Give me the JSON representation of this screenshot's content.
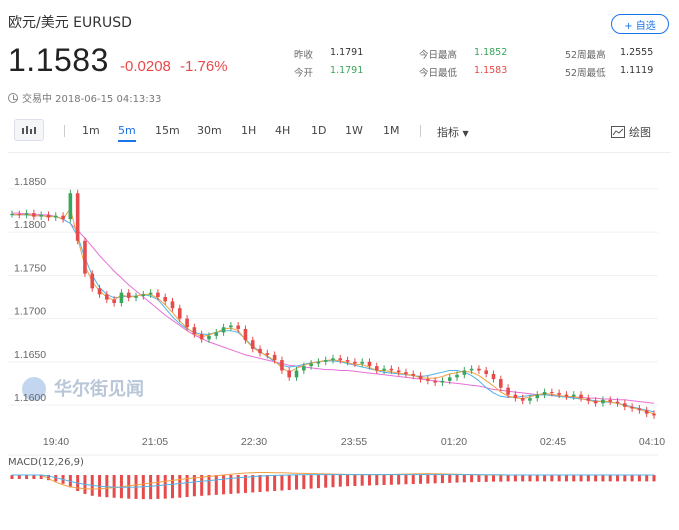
{
  "header": {
    "title": "欧元/美元  EURUSD",
    "add_label": "+ 自选",
    "price": "1.1583",
    "change": "-0.0208",
    "change_pct": "-1.76%",
    "status": "交易中 2018-06-15 04:13:33"
  },
  "stats": [
    {
      "label": "昨收",
      "value": "1.1791",
      "color": "#333333"
    },
    {
      "label": "今开",
      "value": "1.1791",
      "color": "#3aa55c"
    },
    {
      "label": "今日最高",
      "value": "1.1852",
      "color": "#3aa55c"
    },
    {
      "label": "今日最低",
      "value": "1.1583",
      "color": "#e64a4a"
    },
    {
      "label": "52周最高",
      "value": "1.2555",
      "color": "#333333"
    },
    {
      "label": "52周最低",
      "value": "1.1119",
      "color": "#333333"
    }
  ],
  "toolbar": {
    "icon": "candlestick-icon",
    "periods": [
      "1m",
      "5m",
      "15m",
      "30m",
      "1H",
      "4H",
      "1D",
      "1W",
      "1M"
    ],
    "active_period": "5m",
    "indicators_label": "指标",
    "draw_label": "绘图"
  },
  "watermark": "华尔街见闻",
  "chart_data": {
    "type": "line",
    "description_series": [
      "price",
      "ma_short",
      "ma_long"
    ],
    "x_ticks": [
      "19:40",
      "21:05",
      "22:30",
      "23:55",
      "01:20",
      "02:45",
      "04:10"
    ],
    "y_ticks": [
      "1.1850",
      "1.1800",
      "1.1750",
      "1.1700",
      "1.1650",
      "1.1600"
    ],
    "ylim": [
      1.1585,
      1.188
    ],
    "price": [
      1.1821,
      1.182,
      1.1822,
      1.1818,
      1.182,
      1.1817,
      1.1819,
      1.1815,
      1.1845,
      1.179,
      1.1752,
      1.1735,
      1.1728,
      1.1722,
      1.1718,
      1.173,
      1.1724,
      1.1726,
      1.1728,
      1.173,
      1.1725,
      1.172,
      1.1712,
      1.17,
      1.169,
      1.1682,
      1.1676,
      1.168,
      1.1684,
      1.169,
      1.1692,
      1.1688,
      1.1675,
      1.1665,
      1.166,
      1.1658,
      1.1652,
      1.164,
      1.1632,
      1.164,
      1.1645,
      1.1648,
      1.165,
      1.1652,
      1.1654,
      1.1652,
      1.165,
      1.1648,
      1.165,
      1.1645,
      1.164,
      1.1642,
      1.164,
      1.1638,
      1.1636,
      1.1634,
      1.163,
      1.1628,
      1.1626,
      1.1628,
      1.1632,
      1.1635,
      1.164,
      1.1642,
      1.164,
      1.1636,
      1.163,
      1.162,
      1.1612,
      1.1608,
      1.1605,
      1.1608,
      1.1612,
      1.1615,
      1.1614,
      1.1612,
      1.161,
      1.1612,
      1.1608,
      1.1605,
      1.1602,
      1.1606,
      1.1604,
      1.1602,
      1.1598,
      1.1596,
      1.1594,
      1.159,
      1.1588
    ],
    "ma_short": [
      1.182,
      1.182,
      1.182,
      1.1819,
      1.1819,
      1.1818,
      1.1818,
      1.1815,
      1.181,
      1.1795,
      1.177,
      1.175,
      1.1736,
      1.1728,
      1.1724,
      1.1725,
      1.1726,
      1.1726,
      1.1728,
      1.1726,
      1.1722,
      1.1712,
      1.1702,
      1.1694,
      1.1688,
      1.1684,
      1.1682,
      1.1682,
      1.1684,
      1.1686,
      1.1686,
      1.1684,
      1.1676,
      1.1668,
      1.1662,
      1.1656,
      1.165,
      1.1646,
      1.1644,
      1.1645,
      1.1647,
      1.1649,
      1.165,
      1.1651,
      1.1651,
      1.165,
      1.1648,
      1.1646,
      1.1644,
      1.1642,
      1.164,
      1.1638,
      1.1637,
      1.1636,
      1.1635,
      1.1634,
      1.1633,
      1.1634,
      1.1636,
      1.1638,
      1.164,
      1.164,
      1.1638,
      1.1634,
      1.1628,
      1.162,
      1.1614,
      1.161,
      1.1609,
      1.1609,
      1.161,
      1.1611,
      1.1612,
      1.1612,
      1.1611,
      1.161,
      1.1609,
      1.1608,
      1.1607,
      1.1606,
      1.1605,
      1.1604,
      1.1603,
      1.1602,
      1.16,
      1.1598,
      1.1596,
      1.1594,
      1.1592
    ],
    "ma_long": [
      1.1822,
      1.1822,
      1.1821,
      1.1821,
      1.182,
      1.182,
      1.1818,
      1.1815,
      1.181,
      1.1802,
      1.1793,
      1.1783,
      1.1773,
      1.1764,
      1.1755,
      1.1747,
      1.1739,
      1.1732,
      1.1725,
      1.1718,
      1.1711,
      1.1704,
      1.1698,
      1.1692,
      1.1686,
      1.1681,
      1.1677,
      1.1673,
      1.167,
      1.1667,
      1.1664,
      1.1661,
      1.1658,
      1.1656,
      1.1654,
      1.1652,
      1.165,
      1.1648,
      1.1646,
      1.1645,
      1.1644,
      1.1643,
      1.1642,
      1.1641,
      1.1641,
      1.164,
      1.164,
      1.1639,
      1.1638,
      1.1637,
      1.1636,
      1.1635,
      1.1634,
      1.1633,
      1.1632,
      1.1631,
      1.163,
      1.1629,
      1.1628,
      1.1627,
      1.1626,
      1.1625,
      1.1624,
      1.1623,
      1.1622,
      1.162,
      1.1618,
      1.1617,
      1.1616,
      1.1615,
      1.1614,
      1.1613,
      1.1612,
      1.1612,
      1.1611,
      1.161,
      1.161,
      1.1609,
      1.1609,
      1.1608,
      1.1608,
      1.1607,
      1.1607,
      1.1606,
      1.1606,
      1.1605,
      1.1604,
      1.1603,
      1.1602
    ],
    "macd_label": "MACD(12,26,9)",
    "macd_hist_ylim": [
      -1,
      1
    ],
    "macd_hist": [
      0,
      0,
      0,
      0,
      0,
      -0.05,
      -0.1,
      -0.2,
      -0.35,
      -0.5,
      -0.62,
      -0.7,
      -0.74,
      -0.76,
      -0.78,
      -0.8,
      -0.82,
      -0.83,
      -0.84,
      -0.84,
      -0.83,
      -0.82,
      -0.8,
      -0.78,
      -0.75,
      -0.72,
      -0.7,
      -0.68,
      -0.66,
      -0.64,
      -0.62,
      -0.6,
      -0.58,
      -0.56,
      -0.54,
      -0.52,
      -0.5,
      -0.48,
      -0.46,
      -0.44,
      -0.42,
      -0.4,
      -0.38,
      -0.36,
      -0.34,
      -0.32,
      -0.3,
      -0.29,
      -0.28,
      -0.27,
      -0.26,
      -0.25,
      -0.24,
      -0.23,
      -0.22,
      -0.21,
      -0.2,
      -0.19,
      -0.18,
      -0.17,
      -0.16,
      -0.15,
      -0.14,
      -0.13,
      -0.12,
      -0.12,
      -0.11,
      -0.11,
      -0.1,
      -0.1,
      -0.1,
      -0.1,
      -0.1,
      -0.1,
      -0.1,
      -0.1,
      -0.1,
      -0.1,
      -0.1,
      -0.1,
      -0.1,
      -0.1,
      -0.1,
      -0.1,
      -0.1,
      -0.1,
      -0.1,
      -0.1,
      -0.1
    ],
    "macd_dif": [
      0,
      0,
      0,
      0,
      0,
      -0.2,
      -0.4,
      -0.55,
      -0.65,
      -0.72,
      -0.76,
      -0.78,
      -0.77,
      -0.74,
      -0.7,
      -0.66,
      -0.6,
      -0.55,
      -0.5,
      -0.45,
      -0.4,
      -0.35,
      -0.3,
      -0.25,
      -0.2,
      -0.16,
      -0.12,
      -0.08,
      -0.04,
      0,
      0.04,
      0.08,
      0.11,
      0.13,
      0.14,
      0.14,
      0.13,
      0.12,
      0.11,
      0.1,
      0.09,
      0.08,
      0.07,
      0.06,
      0.05,
      0.04,
      0.03,
      0.02,
      0.02,
      0.02,
      0.02,
      0.02,
      0.03,
      0.04,
      0.05,
      0.06,
      0.07,
      0.08,
      0.07,
      0.06,
      0.05,
      0.04,
      0.03,
      0.02,
      0.01,
      0,
      0,
      0,
      0,
      0,
      0,
      0,
      0,
      0,
      0,
      0,
      0,
      0,
      0,
      0,
      0,
      0,
      0,
      0,
      0,
      0,
      0,
      0,
      0
    ],
    "macd_dea": [
      0,
      0,
      0,
      0,
      0,
      -0.05,
      -0.15,
      -0.25,
      -0.35,
      -0.45,
      -0.52,
      -0.58,
      -0.62,
      -0.65,
      -0.67,
      -0.68,
      -0.68,
      -0.67,
      -0.65,
      -0.62,
      -0.59,
      -0.55,
      -0.51,
      -0.47,
      -0.43,
      -0.39,
      -0.35,
      -0.31,
      -0.27,
      -0.23,
      -0.19,
      -0.15,
      -0.12,
      -0.09,
      -0.06,
      -0.04,
      -0.02,
      -0.01,
      0,
      0.01,
      0.01,
      0.02,
      0.02,
      0.02,
      0.02,
      0.02,
      0.02,
      0.02,
      0.02,
      0.02,
      0.02,
      0.02,
      0.02,
      0.02,
      0.02,
      0.02,
      0.02,
      0.02,
      0.02,
      0.02,
      0.02,
      0.02,
      0.02,
      0.02,
      0.01,
      0.01,
      0.01,
      0.01,
      0,
      0,
      0,
      0,
      0,
      0,
      0,
      0,
      0,
      0,
      0,
      0,
      0,
      0,
      0,
      0,
      0,
      0,
      0,
      0,
      0
    ]
  },
  "colors": {
    "accent": "#1a73e8",
    "up": "#3aa55c",
    "down": "#e64a4a",
    "ma_short": "#f0a040",
    "ma_mid": "#4fb3e8",
    "ma_long": "#e86fd6"
  }
}
